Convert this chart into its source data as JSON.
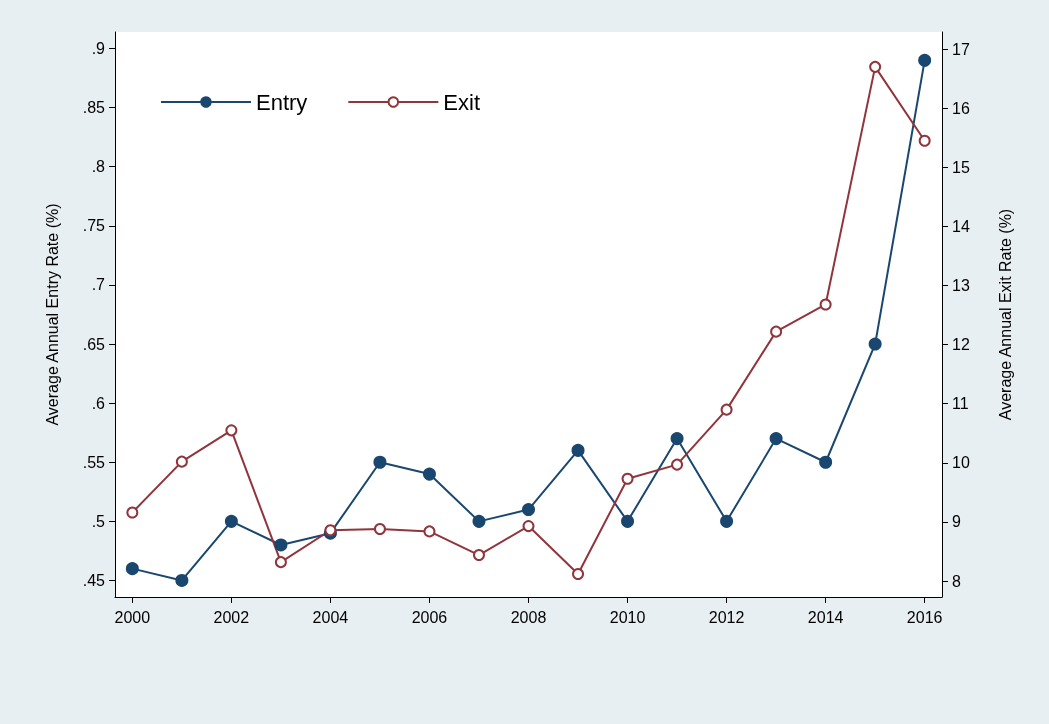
{
  "chart_data": {
    "type": "line",
    "ylabel": "Average Annual Entry Rate (%)",
    "y2label": "Average Annual Exit Rate (%)",
    "x": [
      2000,
      2001,
      2002,
      2003,
      2004,
      2005,
      2006,
      2007,
      2008,
      2009,
      2010,
      2011,
      2012,
      2013,
      2014,
      2015,
      2016
    ],
    "series": [
      {
        "name": "Entry",
        "color": "#1a476f",
        "values": [
          0.46,
          0.45,
          0.5,
          0.48,
          0.49,
          0.55,
          0.54,
          0.5,
          0.51,
          0.56,
          0.5,
          0.57,
          0.5,
          0.57,
          0.55,
          0.65,
          0.89
        ]
      },
      {
        "name": "Exit",
        "color": "#90353b",
        "axis": "y2",
        "values": [
          9.16,
          10.02,
          10.55,
          8.32,
          8.86,
          8.88,
          8.84,
          8.44,
          8.93,
          8.12,
          9.73,
          9.97,
          10.9,
          12.22,
          12.68,
          16.7,
          15.45
        ]
      }
    ],
    "xlim": [
      1999.65,
      2016.35
    ],
    "xticks": [
      2000,
      2002,
      2004,
      2006,
      2008,
      2010,
      2012,
      2014,
      2016
    ],
    "ylim": [
      0.436,
      0.914
    ],
    "yticks": [
      {
        "value": 0.45,
        "label": ".45"
      },
      {
        "value": 0.5,
        "label": ".5"
      },
      {
        "value": 0.55,
        "label": ".55"
      },
      {
        "value": 0.6,
        "label": ".6"
      },
      {
        "value": 0.65,
        "label": ".65"
      },
      {
        "value": 0.7,
        "label": ".7"
      },
      {
        "value": 0.75,
        "label": ".75"
      },
      {
        "value": 0.8,
        "label": ".8"
      },
      {
        "value": 0.85,
        "label": ".85"
      },
      {
        "value": 0.9,
        "label": ".9"
      }
    ],
    "y2lim": [
      7.73,
      17.29
    ],
    "y2ticks": [
      8,
      9,
      10,
      11,
      12,
      13,
      14,
      15,
      16,
      17
    ],
    "grid": false,
    "legend": "top left",
    "marker": "circle",
    "line_style": "solid"
  }
}
